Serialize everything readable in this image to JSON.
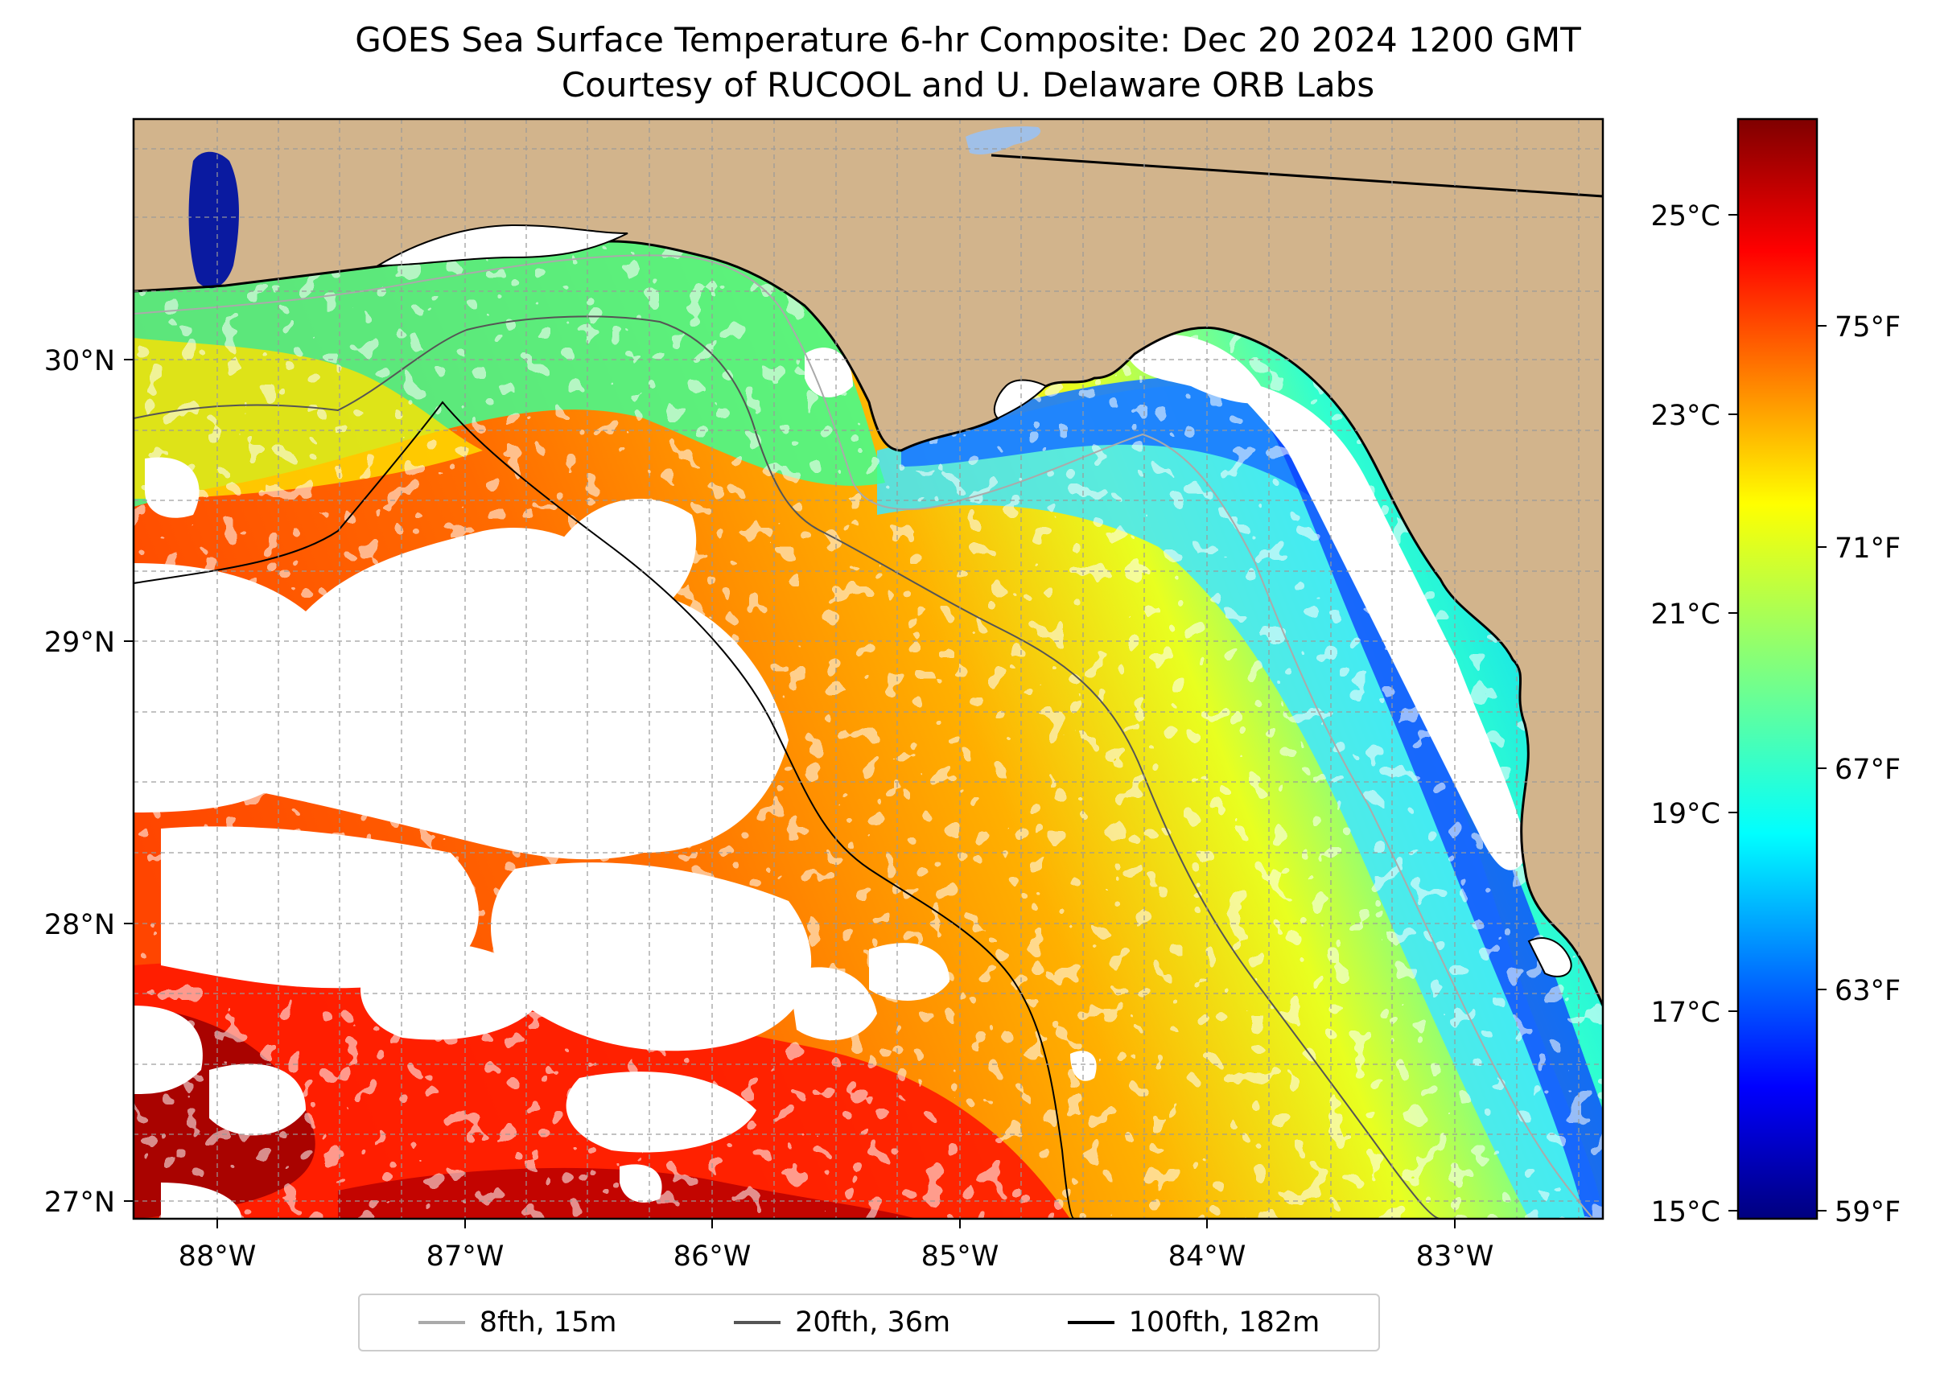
{
  "title": {
    "line1": "GOES Sea Surface Temperature 6-hr Composite: Dec 20 2024 1200 GMT",
    "line2": "Courtesy of RUCOOL and U. Delaware ORB Labs"
  },
  "axes": {
    "lon_labels": [
      "88°W",
      "87°W",
      "86°W",
      "85°W",
      "84°W",
      "83°W"
    ],
    "lat_labels": [
      "30°N",
      "29°N",
      "28°N",
      "27°N"
    ],
    "lon_range": [
      -88.35,
      -82.4
    ],
    "lat_range": [
      26.93,
      30.85
    ],
    "grid": true
  },
  "colorbar": {
    "celsius_labels": [
      "25°C",
      "23°C",
      "21°C",
      "19°C",
      "17°C",
      "15°C"
    ],
    "fahrenheit_labels": [
      "75°F",
      "71°F",
      "67°F",
      "63°F",
      "59°F"
    ],
    "colormap": "jet",
    "range_c": [
      14.9,
      26.0
    ]
  },
  "legend": {
    "items": [
      {
        "label": "8fth, 15m",
        "color": "#aaaaaa"
      },
      {
        "label": "20fth, 36m",
        "color": "#555555"
      },
      {
        "label": "100fth, 182m",
        "color": "#000000"
      }
    ],
    "placement": "bottom-center"
  },
  "colors": {
    "land": "#d2b48c",
    "missing_data": "#ffffff",
    "lake": "#a0c0e8"
  }
}
